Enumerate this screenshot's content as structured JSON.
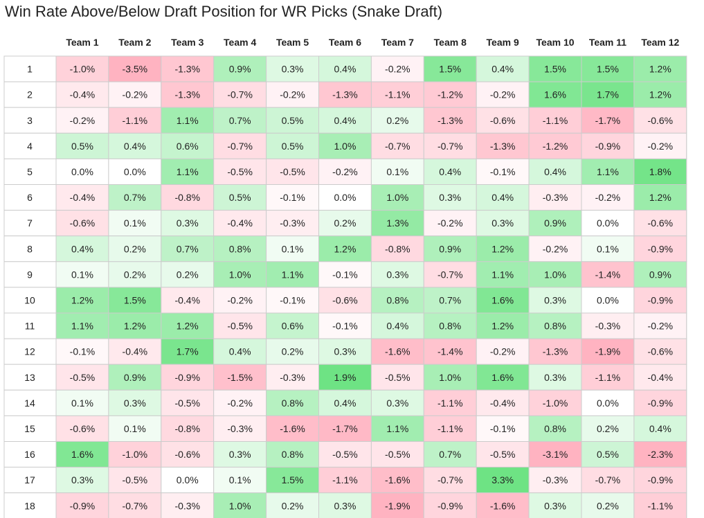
{
  "chart_data": {
    "type": "heatmap",
    "title": "Win Rate Above/Below Draft Position for WR Picks (Snake Draft)",
    "columns": [
      "Team 1",
      "Team 2",
      "Team 3",
      "Team 4",
      "Team 5",
      "Team 6",
      "Team 7",
      "Team 8",
      "Team 9",
      "Team 10",
      "Team 11",
      "Team 12"
    ],
    "rows": [
      "1",
      "2",
      "3",
      "4",
      "5",
      "6",
      "7",
      "8",
      "9",
      "10",
      "11",
      "12",
      "13",
      "14",
      "15",
      "16",
      "17",
      "18"
    ],
    "values": [
      [
        -1.0,
        -3.5,
        -1.3,
        0.9,
        0.3,
        0.4,
        -0.2,
        1.5,
        0.4,
        1.5,
        1.5,
        1.2
      ],
      [
        -0.4,
        -0.2,
        -1.3,
        -0.7,
        -0.2,
        -1.3,
        -1.1,
        -1.2,
        -0.2,
        1.6,
        1.7,
        1.2
      ],
      [
        -0.2,
        -1.1,
        1.1,
        0.7,
        0.5,
        0.4,
        0.2,
        -1.3,
        -0.6,
        -1.1,
        -1.7,
        -0.6
      ],
      [
        0.5,
        0.4,
        0.6,
        -0.7,
        0.5,
        1.0,
        -0.7,
        -0.7,
        -1.3,
        -1.2,
        -0.9,
        -0.2
      ],
      [
        0.0,
        0.0,
        1.1,
        -0.5,
        -0.5,
        -0.2,
        0.1,
        0.4,
        -0.1,
        0.4,
        1.1,
        1.8
      ],
      [
        -0.4,
        0.7,
        -0.8,
        0.5,
        -0.1,
        0.0,
        1.0,
        0.3,
        0.4,
        -0.3,
        -0.2,
        1.2
      ],
      [
        -0.6,
        0.1,
        0.3,
        -0.4,
        -0.3,
        0.2,
        1.3,
        -0.2,
        0.3,
        0.9,
        0.0,
        -0.6
      ],
      [
        0.4,
        0.2,
        0.7,
        0.8,
        0.1,
        1.2,
        -0.8,
        0.9,
        1.2,
        -0.2,
        0.1,
        -0.9
      ],
      [
        0.1,
        0.2,
        0.2,
        1.0,
        1.1,
        -0.1,
        0.3,
        -0.7,
        1.1,
        1.0,
        -1.4,
        0.9
      ],
      [
        1.2,
        1.5,
        -0.4,
        -0.2,
        -0.1,
        -0.6,
        0.8,
        0.7,
        1.6,
        0.3,
        0.0,
        -0.9
      ],
      [
        1.1,
        1.2,
        1.2,
        -0.5,
        0.6,
        -0.1,
        0.4,
        0.8,
        1.2,
        0.8,
        -0.3,
        -0.2
      ],
      [
        -0.1,
        -0.4,
        1.7,
        0.4,
        0.2,
        0.3,
        -1.6,
        -1.4,
        -0.2,
        -1.3,
        -1.9,
        -0.6
      ],
      [
        -0.5,
        0.9,
        -0.9,
        -1.5,
        -0.3,
        1.9,
        -0.5,
        1.0,
        1.6,
        0.3,
        -1.1,
        -0.4
      ],
      [
        0.1,
        0.3,
        -0.5,
        -0.2,
        0.8,
        0.4,
        0.3,
        -1.1,
        -0.4,
        -1.0,
        0.0,
        -0.9
      ],
      [
        -0.6,
        0.1,
        -0.8,
        -0.3,
        -1.6,
        -1.7,
        1.1,
        -1.1,
        -0.1,
        0.8,
        0.2,
        0.4
      ],
      [
        1.6,
        -1.0,
        -0.6,
        0.3,
        0.8,
        -0.5,
        -0.5,
        0.7,
        -0.5,
        -3.1,
        0.5,
        -2.3
      ],
      [
        0.3,
        -0.5,
        0.0,
        0.1,
        1.5,
        -1.1,
        -1.6,
        -0.7,
        3.3,
        -0.3,
        -0.7,
        -0.9
      ],
      [
        -0.9,
        -0.7,
        -0.3,
        1.0,
        0.2,
        0.3,
        -1.9,
        -0.9,
        -1.6,
        0.3,
        0.2,
        -1.1
      ]
    ],
    "value_format": "percent_1dp",
    "colors": {
      "positive": "#6ee384",
      "negative": "#ffb3c1",
      "neutral": "#ffffff",
      "grid": "#cccccc"
    }
  }
}
